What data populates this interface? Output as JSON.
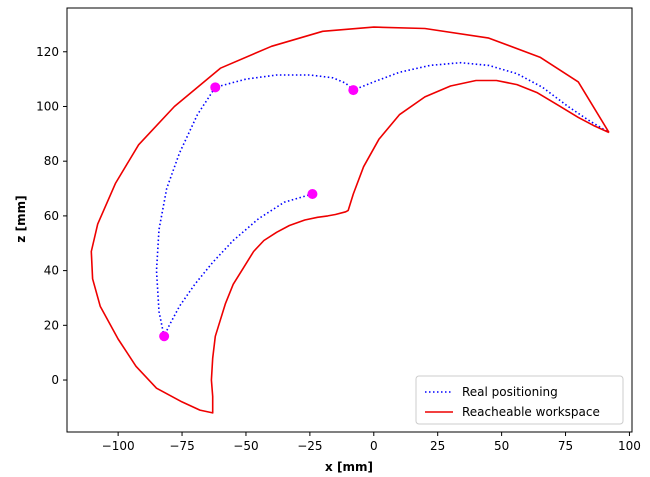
{
  "chart_data": {
    "type": "line",
    "title": "",
    "xlabel": "x [mm]",
    "ylabel": "z [mm]",
    "xlim": [
      -120,
      101
    ],
    "ylim": [
      -19,
      136
    ],
    "xticks": [
      -100,
      -75,
      -50,
      -25,
      0,
      25,
      50,
      75,
      100
    ],
    "yticks": [
      0,
      20,
      40,
      60,
      80,
      100,
      120
    ],
    "xtick_labels": [
      "−100",
      "−75",
      "−50",
      "−25",
      "0",
      "25",
      "50",
      "75",
      "100"
    ],
    "ytick_labels": [
      "0",
      "20",
      "40",
      "60",
      "80",
      "100",
      "120"
    ],
    "grid": false,
    "legend_position": "lower-right",
    "colors": {
      "real": "#0000ff",
      "workspace": "#ee0000",
      "points": "#ff00ff"
    },
    "series": [
      {
        "name": "Real positioning",
        "style": "dotted",
        "points": [
          [
            -24,
            68
          ],
          [
            -35,
            65
          ],
          [
            -45,
            59
          ],
          [
            -55,
            51
          ],
          [
            -63,
            43
          ],
          [
            -70,
            35
          ],
          [
            -76,
            27
          ],
          [
            -80,
            20
          ],
          [
            -82,
            16
          ],
          [
            -84,
            25
          ],
          [
            -85,
            40
          ],
          [
            -84,
            55
          ],
          [
            -81,
            70
          ],
          [
            -76,
            83
          ],
          [
            -69,
            97
          ],
          [
            -62,
            107
          ],
          [
            -50,
            110
          ],
          [
            -38,
            111.5
          ],
          [
            -25,
            111.5
          ],
          [
            -16,
            110.5
          ],
          [
            -11,
            108.5
          ],
          [
            -8,
            106
          ],
          [
            0,
            109
          ],
          [
            10,
            112.5
          ],
          [
            22,
            115
          ],
          [
            34,
            116
          ],
          [
            45,
            115
          ],
          [
            56,
            112
          ],
          [
            66,
            107
          ],
          [
            76,
            100
          ],
          [
            84,
            95
          ],
          [
            92,
            90.5
          ]
        ]
      },
      {
        "name": "Reacheable workspace",
        "style": "solid",
        "points": [
          [
            92,
            90.5
          ],
          [
            80,
            109
          ],
          [
            65,
            118
          ],
          [
            45,
            125
          ],
          [
            20,
            128.5
          ],
          [
            0,
            129
          ],
          [
            -20,
            127.5
          ],
          [
            -40,
            122
          ],
          [
            -60,
            114
          ],
          [
            -78,
            100
          ],
          [
            -92,
            86
          ],
          [
            -101,
            72
          ],
          [
            -108,
            57
          ],
          [
            -110.5,
            47
          ],
          [
            -110,
            37
          ],
          [
            -107,
            27
          ],
          [
            -100,
            15
          ],
          [
            -93,
            5
          ],
          [
            -85,
            -3
          ],
          [
            -75,
            -8
          ],
          [
            -68,
            -11
          ],
          [
            -63,
            -12
          ],
          [
            -63,
            -6
          ],
          [
            -63.5,
            0
          ],
          [
            -63,
            8
          ],
          [
            -62,
            16
          ],
          [
            -60,
            22
          ],
          [
            -58,
            28
          ],
          [
            -55,
            35
          ],
          [
            -51,
            41
          ],
          [
            -47,
            47
          ],
          [
            -43,
            51
          ],
          [
            -38,
            54
          ],
          [
            -33,
            56.5
          ],
          [
            -27,
            58.5
          ],
          [
            -22,
            59.5
          ],
          [
            -18,
            60
          ],
          [
            -15,
            60.5
          ],
          [
            -11,
            61.5
          ],
          [
            -10,
            62
          ],
          [
            -8,
            68
          ],
          [
            -4,
            78
          ],
          [
            2,
            88
          ],
          [
            10,
            97
          ],
          [
            20,
            103.5
          ],
          [
            30,
            107.5
          ],
          [
            40,
            109.5
          ],
          [
            48,
            109.5
          ],
          [
            56,
            108
          ],
          [
            64,
            105
          ],
          [
            72,
            100.5
          ],
          [
            80,
            96
          ],
          [
            86,
            93
          ],
          [
            92,
            90.5
          ]
        ]
      }
    ],
    "markers": [
      {
        "x": -24,
        "y": 68
      },
      {
        "x": -82,
        "y": 16
      },
      {
        "x": -62,
        "y": 107
      },
      {
        "x": -8,
        "y": 106
      }
    ],
    "legend": [
      {
        "label": "Real positioning",
        "style": "dotted"
      },
      {
        "label": "Reacheable workspace",
        "style": "solid"
      }
    ]
  }
}
